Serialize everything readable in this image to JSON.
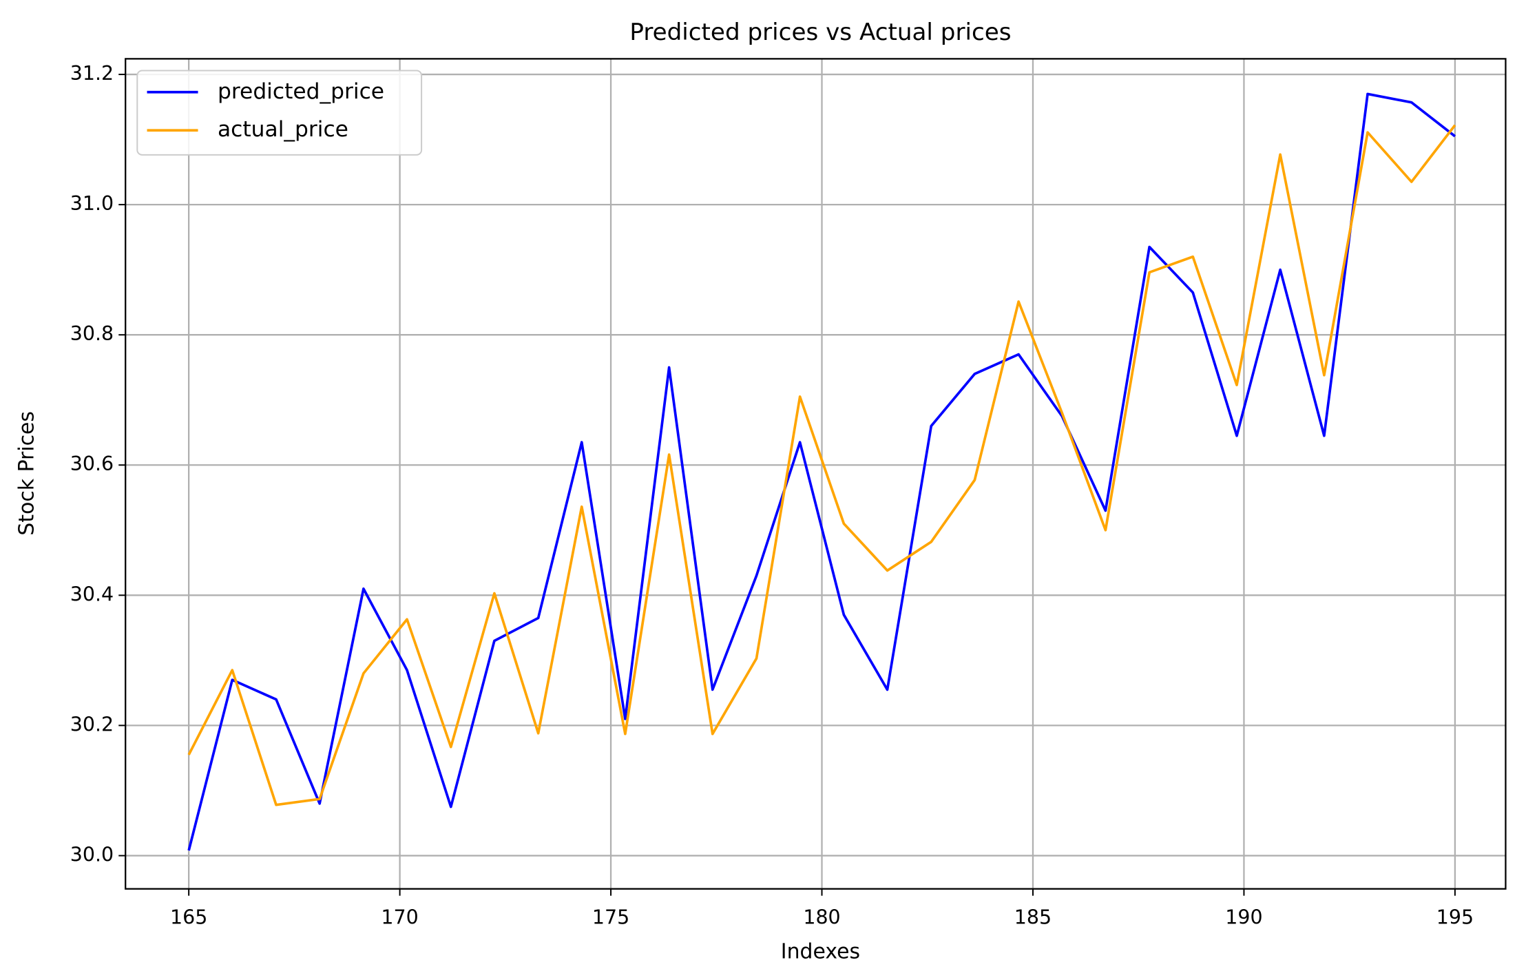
{
  "chart_data": {
    "type": "line",
    "title": "Predicted prices vs Actual prices",
    "x_label": "Indexes",
    "y_label": "Stock Prices",
    "x": [
      165,
      166.03,
      167.07,
      168.1,
      169.14,
      170.17,
      171.21,
      172.24,
      173.28,
      174.31,
      175.34,
      176.38,
      177.41,
      178.45,
      179.48,
      180.52,
      181.55,
      182.59,
      183.62,
      184.66,
      185.69,
      186.72,
      187.76,
      188.79,
      189.83,
      190.86,
      191.9,
      192.93,
      193.97,
      195
    ],
    "series": [
      {
        "name": "predicted_price",
        "color": "#0000ff",
        "values": [
          30.008,
          30.27,
          30.24,
          30.08,
          30.41,
          30.285,
          30.075,
          30.33,
          30.365,
          30.635,
          30.21,
          30.75,
          30.255,
          30.43,
          30.635,
          30.37,
          30.255,
          30.66,
          30.74,
          30.77,
          30.675,
          30.53,
          30.935,
          30.865,
          30.645,
          30.9,
          30.645,
          31.17,
          31.157,
          31.105
        ]
      },
      {
        "name": "actual_price",
        "color": "#ffa500",
        "values": [
          30.155,
          30.285,
          30.078,
          30.087,
          30.28,
          30.363,
          30.167,
          30.403,
          30.188,
          30.536,
          30.187,
          30.616,
          30.187,
          30.303,
          30.705,
          30.51,
          30.438,
          30.482,
          30.577,
          30.851,
          30.68,
          30.5,
          30.896,
          30.92,
          30.723,
          31.077,
          30.738,
          31.111,
          31.035,
          31.122
        ]
      }
    ],
    "xlim": [
      163.5,
      196.2
    ],
    "ylim": [
      29.949,
      31.224
    ],
    "xticks": [
      165,
      170,
      175,
      180,
      185,
      190,
      195
    ],
    "yticks": [
      {
        "value": 30,
        "label": "30.0"
      },
      30.2,
      30.4,
      30.6,
      30.8,
      {
        "value": 31,
        "label": "31.0"
      },
      31.2
    ],
    "grid": true,
    "legend": "upper left"
  }
}
